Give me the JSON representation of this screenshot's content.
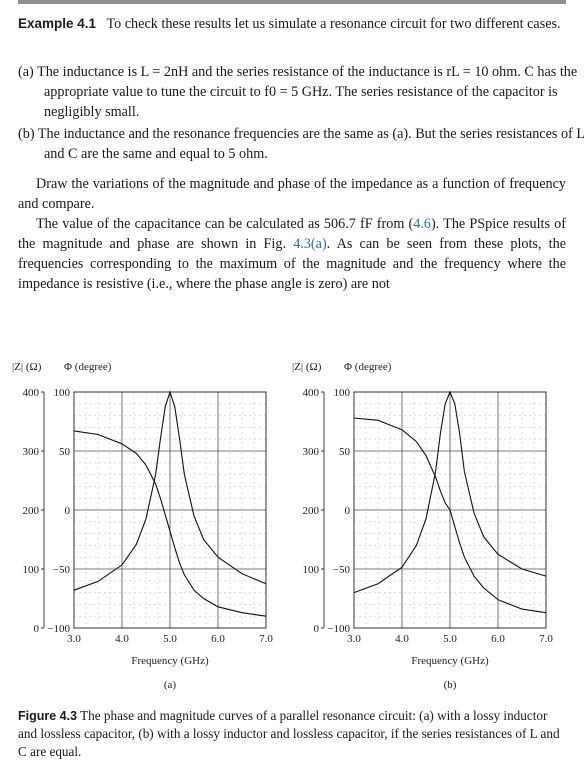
{
  "example": {
    "label": "Example 4.1",
    "intro": "To check these results let us simulate a resonance circuit for two different cases."
  },
  "items": [
    {
      "marker": "(a)",
      "text": "The inductance is L = 2nH and the series resistance of the inductance is rL = 10 ohm. C has the appropriate value to tune the circuit to f0 = 5 GHz. The series resistance of the capacitor is negligibly small."
    },
    {
      "marker": "(b)",
      "text": "The inductance and the resonance frequencies are the same as (a). But the series resistances of L and C are the same and equal to 5 ohm."
    }
  ],
  "paragraphs": {
    "p1": "Draw the variations of the magnitude and phase of the impedance as a function of frequency and compare.",
    "p2_a": "The value of the capacitance can be calculated as 506.7 fF from (",
    "p2_ref1": "4.6",
    "p2_b": "). The PSpice results of the magnitude and phase are shown in Fig. ",
    "p2_ref2": "4.3(a)",
    "p2_c": ". As can be seen from these plots, the frequencies corresponding to the maximum of the magnitude and the frequency where the impedance is resistive (i.e., where the phase angle is zero) are not"
  },
  "figure": {
    "number": "Figure 4.3",
    "caption": "The phase and magnitude curves of a parallel resonance circuit: (a) with a lossy inductor and lossless capacitor, (b) with a lossy inductor and lossless capacitor, if the series resistances of L and C are equal."
  },
  "chart_data": [
    {
      "type": "line",
      "panel_label": "(a)",
      "xlabel": "Frequency (GHz)",
      "ylabel_left": "|Z| (Ω)",
      "ylabel_right": "Φ (degree)",
      "x_ticks": [
        "3.0",
        "4.0",
        "5.0",
        "6.0",
        "7.0"
      ],
      "y_ticks_magnitude": [
        "0",
        "100",
        "200",
        "300",
        "400"
      ],
      "y_ticks_phase": [
        "−100",
        "−50",
        "0",
        "50",
        "100"
      ],
      "xlim": [
        3.0,
        7.0
      ],
      "ylim_magnitude": [
        0,
        400
      ],
      "ylim_phase": [
        -100,
        100
      ],
      "grid": true,
      "series": [
        {
          "quantity": "magnitude",
          "x": [
            3.0,
            3.5,
            4.0,
            4.3,
            4.5,
            4.7,
            4.8,
            4.9,
            5.0,
            5.1,
            5.2,
            5.3,
            5.5,
            5.7,
            6.0,
            6.5,
            7.0
          ],
          "y": [
            64,
            79,
            107,
            142,
            185,
            260,
            320,
            375,
            400,
            375,
            320,
            260,
            190,
            150,
            120,
            92,
            75
          ]
        },
        {
          "quantity": "phase",
          "x": [
            3.0,
            3.5,
            4.0,
            4.3,
            4.5,
            4.7,
            4.8,
            4.9,
            5.0,
            5.1,
            5.2,
            5.3,
            5.5,
            5.7,
            6.0,
            6.5,
            7.0
          ],
          "y": [
            67,
            64,
            56,
            48,
            38,
            22,
            10,
            -4,
            -18,
            -32,
            -45,
            -55,
            -68,
            -75,
            -82,
            -87,
            -90
          ]
        }
      ]
    },
    {
      "type": "line",
      "panel_label": "(b)",
      "xlabel": "Frequency (GHz)",
      "ylabel_left": "|Z| (Ω)",
      "ylabel_right": "Φ (degree)",
      "x_ticks": [
        "3.0",
        "4.0",
        "5.0",
        "6.0",
        "7.0"
      ],
      "y_ticks_magnitude": [
        "0",
        "100",
        "200",
        "300",
        "400"
      ],
      "y_ticks_phase": [
        "−100",
        "−50",
        "0",
        "50",
        "100"
      ],
      "xlim": [
        3.0,
        7.0
      ],
      "ylim_magnitude": [
        0,
        400
      ],
      "ylim_phase": [
        -100,
        100
      ],
      "grid": true,
      "series": [
        {
          "quantity": "magnitude",
          "x": [
            3.0,
            3.5,
            4.0,
            4.3,
            4.5,
            4.7,
            4.8,
            4.9,
            5.0,
            5.1,
            5.2,
            5.3,
            5.5,
            5.7,
            6.0,
            6.5,
            7.0
          ],
          "y": [
            60,
            75,
            103,
            140,
            185,
            265,
            330,
            380,
            400,
            380,
            330,
            265,
            195,
            155,
            125,
            100,
            88
          ]
        },
        {
          "quantity": "phase",
          "x": [
            3.0,
            3.5,
            4.0,
            4.3,
            4.5,
            4.7,
            4.8,
            4.9,
            5.0,
            5.1,
            5.2,
            5.3,
            5.5,
            5.7,
            6.0,
            6.5,
            7.0
          ],
          "y": [
            78,
            76,
            68,
            58,
            46,
            28,
            16,
            6,
            0,
            -14,
            -28,
            -40,
            -56,
            -66,
            -76,
            -84,
            -87
          ]
        }
      ]
    }
  ]
}
